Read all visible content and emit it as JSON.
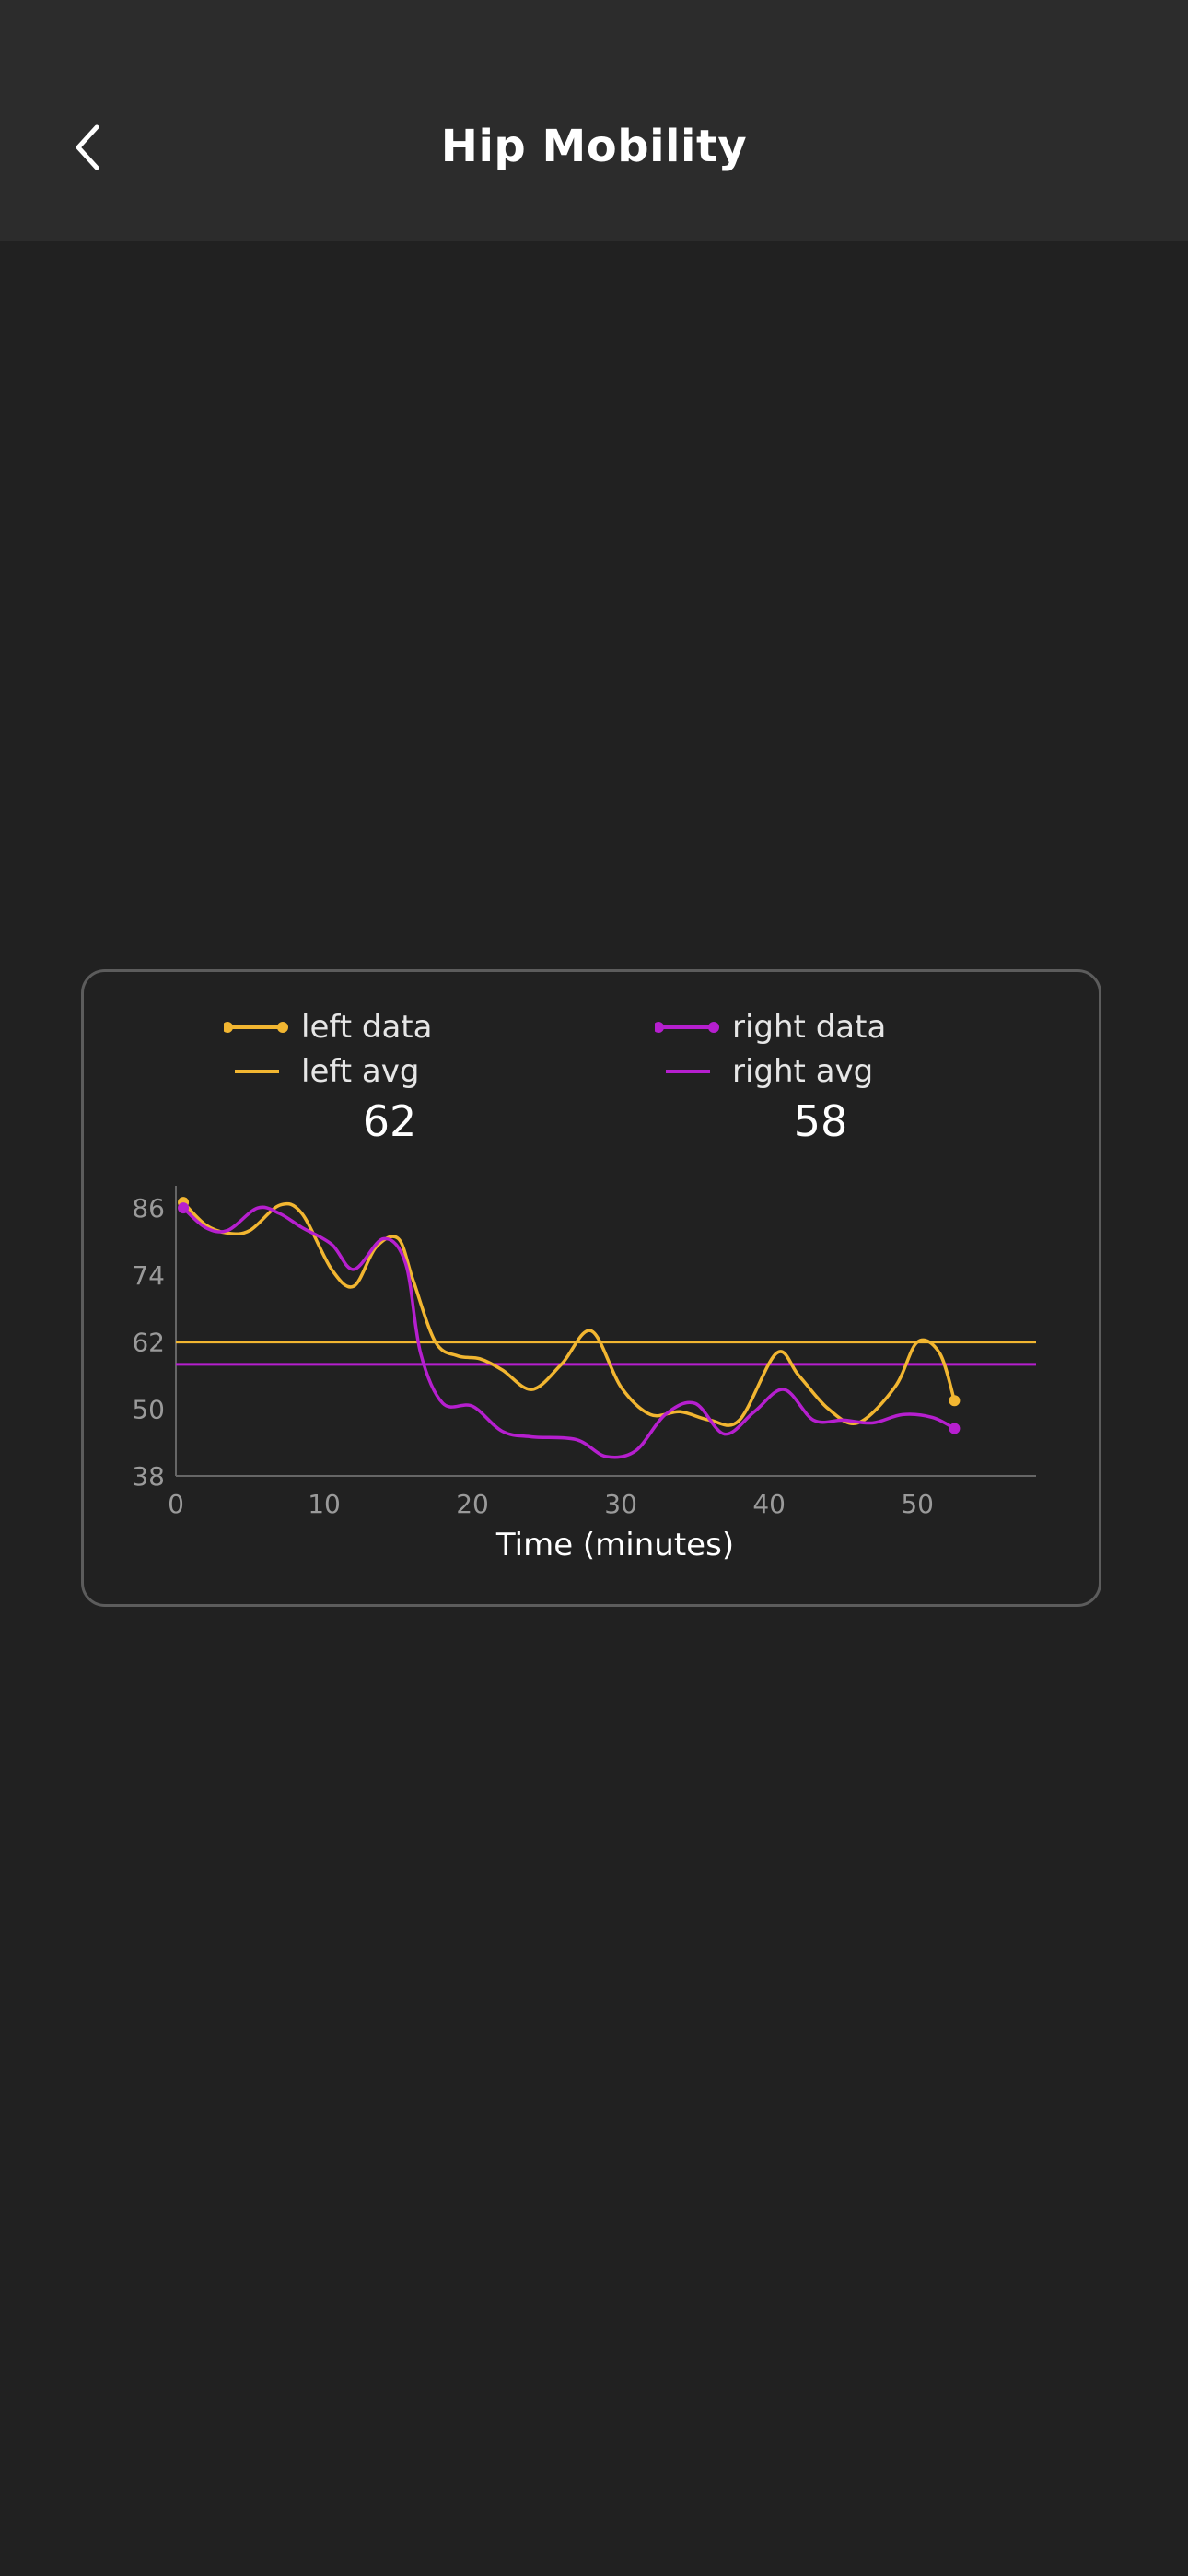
{
  "header": {
    "title": "Hip Mobility",
    "back_icon": "chevron-left-icon"
  },
  "colors": {
    "left": "#f2b631",
    "right": "#b61fcf",
    "background": "#212121",
    "header_background": "#2c2c2c"
  },
  "legend": {
    "left_data": "left data",
    "left_avg": "left avg",
    "right_data": "right data",
    "right_avg": "right avg",
    "left_avg_value": "62",
    "right_avg_value": "58"
  },
  "chart_data": {
    "type": "line",
    "xlabel": "Time (minutes)",
    "ylabel": "",
    "xlim": [
      0,
      58
    ],
    "ylim": [
      38,
      89
    ],
    "x_ticks": [
      "0",
      "10",
      "20",
      "30",
      "40",
      "50"
    ],
    "y_ticks": [
      "86",
      "74",
      "62",
      "50",
      "38"
    ],
    "grid": false,
    "legend_position": "top",
    "series": [
      {
        "name": "left data",
        "color": "#f2b631",
        "x": [
          0.5,
          2,
          3.5,
          5,
          7,
          8.5,
          10.5,
          12,
          13.5,
          15,
          16,
          17.5,
          19,
          20.5,
          22,
          24,
          26,
          28,
          30,
          32,
          34,
          36,
          38,
          40.5,
          42,
          44,
          46,
          48.5,
          50,
          51.5,
          52.5
        ],
        "values": [
          87,
          83,
          81.5,
          82,
          86.5,
          85,
          75,
          72,
          79,
          80.5,
          73,
          62,
          59.5,
          59,
          57,
          53.5,
          58,
          64,
          54,
          49,
          49.5,
          48,
          48,
          60,
          56,
          50,
          47.5,
          54,
          62,
          60,
          51.5
        ]
      },
      {
        "name": "right data",
        "color": "#b61fcf",
        "x": [
          0.5,
          2,
          3.5,
          5.5,
          7,
          8.5,
          10.5,
          12,
          14,
          15.5,
          16.5,
          18,
          20,
          22,
          24,
          27,
          29,
          31,
          33,
          35,
          37,
          39,
          41,
          43,
          45,
          47,
          49,
          51,
          52.5
        ],
        "values": [
          86,
          82.5,
          82,
          86,
          85,
          82.5,
          79.5,
          75,
          80.5,
          76,
          60,
          51,
          50.5,
          46,
          45,
          44.5,
          41.5,
          42.5,
          49,
          51,
          45.5,
          49.5,
          53.5,
          48,
          48,
          47.5,
          49,
          48.5,
          46.5
        ]
      },
      {
        "name": "left avg",
        "color": "#f2b631",
        "value": 62
      },
      {
        "name": "right avg",
        "color": "#b61fcf",
        "value": 58
      }
    ]
  }
}
